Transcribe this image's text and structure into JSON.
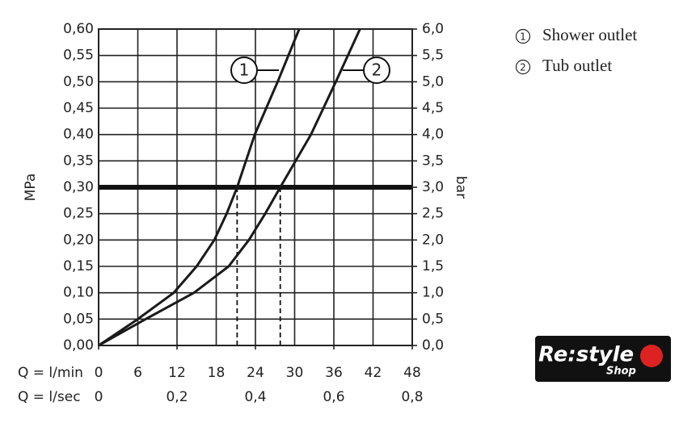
{
  "chart_data": {
    "type": "line",
    "ylabel": "MPa",
    "y2label": "bar",
    "xlabel": "Q = l/min",
    "x2label": "Q = l/sec",
    "xlim": [
      0,
      48
    ],
    "xticks": [
      0,
      6,
      12,
      18,
      24,
      30,
      36,
      42,
      48
    ],
    "x2lim": [
      0,
      0.8
    ],
    "x2ticks": [
      0,
      {
        "value": 0.2,
        "label": "0,2"
      },
      {
        "value": 0.4,
        "label": "0,4"
      },
      {
        "value": 0.6,
        "label": "0,6"
      },
      {
        "value": 0.8,
        "label": "0,8"
      }
    ],
    "ylim": [
      0,
      0.6
    ],
    "yticks": [
      {
        "value": 0,
        "label": "0,00"
      },
      {
        "value": 0.05,
        "label": "0,05"
      },
      {
        "value": 0.1,
        "label": "0,10"
      },
      {
        "value": 0.15,
        "label": "0,15"
      },
      {
        "value": 0.2,
        "label": "0,20"
      },
      {
        "value": 0.25,
        "label": "0,25"
      },
      {
        "value": 0.3,
        "label": "0,30"
      },
      {
        "value": 0.35,
        "label": "0,35"
      },
      {
        "value": 0.4,
        "label": "0,40"
      },
      {
        "value": 0.45,
        "label": "0,45"
      },
      {
        "value": 0.5,
        "label": "0,50"
      },
      {
        "value": 0.55,
        "label": "0,55"
      },
      {
        "value": 0.6,
        "label": "0,60"
      }
    ],
    "y2lim": [
      0,
      6
    ],
    "y2ticks": [
      {
        "value": 0,
        "label": "0,0"
      },
      {
        "value": 0.5,
        "label": "0,5"
      },
      {
        "value": 1,
        "label": "1,0"
      },
      {
        "value": 1.5,
        "label": "1,5"
      },
      {
        "value": 2,
        "label": "2,0"
      },
      {
        "value": 2.5,
        "label": "2,5"
      },
      {
        "value": 3,
        "label": "3,0"
      },
      {
        "value": 3.5,
        "label": "3,5"
      },
      {
        "value": 4,
        "label": "4,0"
      },
      {
        "value": 4.5,
        "label": "4,5"
      },
      {
        "value": 5,
        "label": "5,0"
      },
      {
        "value": 5.5,
        "label": "5,5"
      },
      {
        "value": 6,
        "label": "6,0"
      }
    ],
    "grid": true,
    "threshold": 0.3,
    "series": [
      {
        "name": "Shower outlet",
        "marker": "1",
        "color": "#1a1a1a",
        "x": [
          0,
          6,
          11.5,
          15,
          17.7,
          19.6,
          21.2,
          23.9,
          27.4,
          30.7
        ],
        "values": [
          0,
          0.05,
          0.1,
          0.15,
          0.2,
          0.25,
          0.3,
          0.4,
          0.5,
          0.6
        ]
      },
      {
        "name": "Tub outlet",
        "marker": "2",
        "color": "#1a1a1a",
        "x": [
          0,
          7.2,
          14.6,
          19.9,
          23,
          25.5,
          27.8,
          32.5,
          36.3,
          40
        ],
        "values": [
          0,
          0.05,
          0.1,
          0.15,
          0.2,
          0.25,
          0.3,
          0.4,
          0.5,
          0.6
        ]
      }
    ]
  },
  "logo": {
    "text": "Re:style",
    "sub": "Shop"
  }
}
